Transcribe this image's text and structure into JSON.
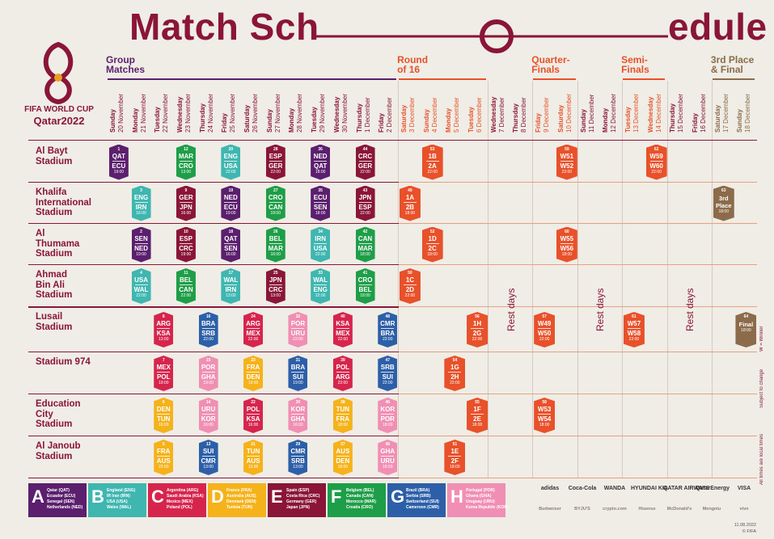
{
  "title": {
    "part1": "Match Sch",
    "part2": "edule"
  },
  "logo": {
    "line1": "FIFA WORLD CUP",
    "line2": "Qatar2022"
  },
  "stages": [
    {
      "lines": [
        "Group",
        "Matches"
      ],
      "color": "#5b1f6e"
    },
    {
      "lines": [
        "Round",
        "of 16"
      ],
      "color": "#e8512a"
    },
    {
      "lines": [
        "Quarter-",
        "Finals"
      ],
      "color": "#e8512a"
    },
    {
      "lines": [
        "Semi-",
        "Finals"
      ],
      "color": "#e8512a"
    },
    {
      "lines": [
        "3rd Place",
        "& Final"
      ],
      "color": "#8b6b4a"
    }
  ],
  "days": [
    {
      "day": "Sunday",
      "date": "20 November"
    },
    {
      "day": "Monday",
      "date": "21 November"
    },
    {
      "day": "Tuesday",
      "date": "22 November"
    },
    {
      "day": "Wednesday",
      "date": "23 November"
    },
    {
      "day": "Thursday",
      "date": "24 November"
    },
    {
      "day": "Friday",
      "date": "25 November"
    },
    {
      "day": "Saturday",
      "date": "26 November"
    },
    {
      "day": "Sunday",
      "date": "27 November"
    },
    {
      "day": "Monday",
      "date": "28 November"
    },
    {
      "day": "Tuesday",
      "date": "29 November"
    },
    {
      "day": "Wednesday",
      "date": "30 November"
    },
    {
      "day": "Thursday",
      "date": "1 December"
    },
    {
      "day": "Friday",
      "date": "2 December"
    },
    {
      "day": "Saturday",
      "date": "3 December"
    },
    {
      "day": "Sunday",
      "date": "4 December"
    },
    {
      "day": "Monday",
      "date": "5 December"
    },
    {
      "day": "Tuesday",
      "date": "6 December"
    },
    {
      "day": "Wednesday",
      "date": "7 December"
    },
    {
      "day": "Thursday",
      "date": "8 December"
    },
    {
      "day": "Friday",
      "date": "9 December"
    },
    {
      "day": "Saturday",
      "date": "10 December"
    },
    {
      "day": "Sunday",
      "date": "11 December"
    },
    {
      "day": "Monday",
      "date": "12 December"
    },
    {
      "day": "Tuesday",
      "date": "13 December"
    },
    {
      "day": "Wednesday",
      "date": "14 December"
    },
    {
      "day": "Thursday",
      "date": "15 December"
    },
    {
      "day": "Friday",
      "date": "16 December"
    },
    {
      "day": "Saturday",
      "date": "17 December"
    },
    {
      "day": "Sunday",
      "date": "18 December"
    }
  ],
  "stadiums": [
    {
      "lines": [
        "Al Bayt",
        "Stadium"
      ]
    },
    {
      "lines": [
        "Khalifa",
        "International",
        "Stadium"
      ]
    },
    {
      "lines": [
        "Al",
        "Thumama",
        "Stadium"
      ]
    },
    {
      "lines": [
        "Ahmad",
        "Bin Ali",
        "Stadium"
      ]
    },
    {
      "lines": [
        "Lusail",
        "Stadium"
      ]
    },
    {
      "lines": [
        "Stadium 974"
      ]
    },
    {
      "lines": [
        "Education",
        "City",
        "Stadium"
      ]
    },
    {
      "lines": [
        "Al Janoub",
        "Stadium"
      ]
    }
  ],
  "groups": [
    {
      "letter": "A",
      "color": "#5b1f6e",
      "teams": [
        "Qatar (QAT)",
        "Ecuador (ECU)",
        "Senegal (SEN)",
        "Netherlands (NED)"
      ]
    },
    {
      "letter": "B",
      "color": "#3fb6b0",
      "teams": [
        "England (ENG)",
        "IR Iran (IRN)",
        "USA (USA)",
        "Wales (WAL)"
      ]
    },
    {
      "letter": "C",
      "color": "#d6254d",
      "teams": [
        "Argentina (ARG)",
        "Saudi Arabia (KSA)",
        "Mexico (MEX)",
        "Poland (POL)"
      ]
    },
    {
      "letter": "D",
      "color": "#f5b21a",
      "teams": [
        "France (FRA)",
        "Australia (AUS)",
        "Denmark (DEN)",
        "Tunisia (TUN)"
      ]
    },
    {
      "letter": "E",
      "color": "#8a1538",
      "teams": [
        "Spain (ESP)",
        "Costa Rica (CRC)",
        "Germany (GER)",
        "Japan (JPN)"
      ]
    },
    {
      "letter": "F",
      "color": "#1e9e48",
      "teams": [
        "Belgium (BEL)",
        "Canada (CAN)",
        "Morocco (MAR)",
        "Croatia (CRO)"
      ]
    },
    {
      "letter": "G",
      "color": "#2d5fa8",
      "teams": [
        "Brazil (BRA)",
        "Serbia (SRB)",
        "Switzerland (SUI)",
        "Cameroon (CMR)"
      ]
    },
    {
      "letter": "H",
      "color": "#f08fb3",
      "teams": [
        "Portugal (POR)",
        "Ghana (GHA)",
        "Uruguay (URU)",
        "Korea Republic (KOR)"
      ]
    }
  ],
  "matches": [
    {
      "no": 1,
      "stadium": 0,
      "day": 0,
      "home": "QAT",
      "away": "ECU",
      "time": "19:00",
      "group": "A"
    },
    {
      "no": 2,
      "stadium": 2,
      "day": 1,
      "home": "SEN",
      "away": "NED",
      "time": "19:00",
      "group": "A"
    },
    {
      "no": 3,
      "stadium": 1,
      "day": 1,
      "home": "ENG",
      "away": "IRN",
      "time": "16:00",
      "group": "B"
    },
    {
      "no": 4,
      "stadium": 3,
      "day": 1,
      "home": "USA",
      "away": "WAL",
      "time": "22:00",
      "group": "B"
    },
    {
      "no": 5,
      "stadium": 7,
      "day": 2,
      "home": "FRA",
      "away": "AUS",
      "time": "22:00",
      "group": "D"
    },
    {
      "no": 6,
      "stadium": 6,
      "day": 2,
      "home": "DEN",
      "away": "TUN",
      "time": "16:00",
      "group": "D"
    },
    {
      "no": 7,
      "stadium": 5,
      "day": 2,
      "home": "MEX",
      "away": "POL",
      "time": "19:00",
      "group": "C"
    },
    {
      "no": 8,
      "stadium": 4,
      "day": 2,
      "home": "ARG",
      "away": "KSA",
      "time": "13:00",
      "group": "C"
    },
    {
      "no": 9,
      "stadium": 1,
      "day": 3,
      "home": "GER",
      "away": "JPN",
      "time": "16:00",
      "group": "E"
    },
    {
      "no": 10,
      "stadium": 2,
      "day": 3,
      "home": "ESP",
      "away": "CRC",
      "time": "19:00",
      "group": "E"
    },
    {
      "no": 11,
      "stadium": 3,
      "day": 3,
      "home": "BEL",
      "away": "CAN",
      "time": "22:00",
      "group": "F"
    },
    {
      "no": 12,
      "stadium": 0,
      "day": 3,
      "home": "MAR",
      "away": "CRO",
      "time": "13:00",
      "group": "F"
    },
    {
      "no": 13,
      "stadium": 7,
      "day": 4,
      "home": "SUI",
      "away": "CMR",
      "time": "13:00",
      "group": "G"
    },
    {
      "no": 14,
      "stadium": 6,
      "day": 4,
      "home": "URU",
      "away": "KOR",
      "time": "16:00",
      "group": "H"
    },
    {
      "no": 15,
      "stadium": 5,
      "day": 4,
      "home": "POR",
      "away": "GHA",
      "time": "19:00",
      "group": "H"
    },
    {
      "no": 16,
      "stadium": 4,
      "day": 4,
      "home": "BRA",
      "away": "SRB",
      "time": "22:00",
      "group": "G"
    },
    {
      "no": 17,
      "stadium": 3,
      "day": 5,
      "home": "WAL",
      "away": "IRN",
      "time": "13:00",
      "group": "B"
    },
    {
      "no": 18,
      "stadium": 2,
      "day": 5,
      "home": "QAT",
      "away": "SEN",
      "time": "16:00",
      "group": "A"
    },
    {
      "no": 19,
      "stadium": 1,
      "day": 5,
      "home": "NED",
      "away": "ECU",
      "time": "19:00",
      "group": "A"
    },
    {
      "no": 20,
      "stadium": 0,
      "day": 5,
      "home": "ENG",
      "away": "USA",
      "time": "22:00",
      "group": "B"
    },
    {
      "no": 21,
      "stadium": 7,
      "day": 6,
      "home": "TUN",
      "away": "AUS",
      "time": "13:00",
      "group": "D"
    },
    {
      "no": 22,
      "stadium": 6,
      "day": 6,
      "home": "POL",
      "away": "KSA",
      "time": "16:00",
      "group": "C"
    },
    {
      "no": 23,
      "stadium": 5,
      "day": 6,
      "home": "FRA",
      "away": "DEN",
      "time": "19:00",
      "group": "D"
    },
    {
      "no": 24,
      "stadium": 4,
      "day": 6,
      "home": "ARG",
      "away": "MEX",
      "time": "22:00",
      "group": "C"
    },
    {
      "no": 25,
      "stadium": 3,
      "day": 7,
      "home": "JPN",
      "away": "CRC",
      "time": "13:00",
      "group": "E"
    },
    {
      "no": 26,
      "stadium": 2,
      "day": 7,
      "home": "BEL",
      "away": "MAR",
      "time": "16:00",
      "group": "F"
    },
    {
      "no": 27,
      "stadium": 1,
      "day": 7,
      "home": "CRO",
      "away": "CAN",
      "time": "19:00",
      "group": "F"
    },
    {
      "no": 28,
      "stadium": 0,
      "day": 7,
      "home": "ESP",
      "away": "GER",
      "time": "22:00",
      "group": "E"
    },
    {
      "no": 29,
      "stadium": 7,
      "day": 8,
      "home": "CMR",
      "away": "SRB",
      "time": "13:00",
      "group": "G"
    },
    {
      "no": 30,
      "stadium": 6,
      "day": 8,
      "home": "KOR",
      "away": "GHA",
      "time": "16:00",
      "group": "H"
    },
    {
      "no": 31,
      "stadium": 5,
      "day": 8,
      "home": "BRA",
      "away": "SUI",
      "time": "19:00",
      "group": "G"
    },
    {
      "no": 32,
      "stadium": 4,
      "day": 8,
      "home": "POR",
      "away": "URU",
      "time": "22:00",
      "group": "H"
    },
    {
      "no": 33,
      "stadium": 3,
      "day": 9,
      "home": "WAL",
      "away": "ENG",
      "time": "22:00",
      "group": "B"
    },
    {
      "no": 34,
      "stadium": 2,
      "day": 9,
      "home": "IRN",
      "away": "USA",
      "time": "22:00",
      "group": "B"
    },
    {
      "no": 35,
      "stadium": 1,
      "day": 9,
      "home": "ECU",
      "away": "SEN",
      "time": "18:00",
      "group": "A"
    },
    {
      "no": 36,
      "stadium": 0,
      "day": 9,
      "home": "NED",
      "away": "QAT",
      "time": "18:00",
      "group": "A"
    },
    {
      "no": 37,
      "stadium": 7,
      "day": 10,
      "home": "AUS",
      "away": "DEN",
      "time": "18:00",
      "group": "D"
    },
    {
      "no": 38,
      "stadium": 6,
      "day": 10,
      "home": "TUN",
      "away": "FRA",
      "time": "18:00",
      "group": "D"
    },
    {
      "no": 39,
      "stadium": 5,
      "day": 10,
      "home": "POL",
      "away": "ARG",
      "time": "22:00",
      "group": "C"
    },
    {
      "no": 40,
      "stadium": 4,
      "day": 10,
      "home": "KSA",
      "away": "MEX",
      "time": "22:00",
      "group": "C"
    },
    {
      "no": 41,
      "stadium": 3,
      "day": 11,
      "home": "CRO",
      "away": "BEL",
      "time": "18:00",
      "group": "F"
    },
    {
      "no": 42,
      "stadium": 2,
      "day": 11,
      "home": "CAN",
      "away": "MAR",
      "time": "18:00",
      "group": "F"
    },
    {
      "no": 43,
      "stadium": 1,
      "day": 11,
      "home": "JPN",
      "away": "ESP",
      "time": "22:00",
      "group": "E"
    },
    {
      "no": 44,
      "stadium": 0,
      "day": 11,
      "home": "CRC",
      "away": "GER",
      "time": "22:00",
      "group": "E"
    },
    {
      "no": 45,
      "stadium": 7,
      "day": 12,
      "home": "GHA",
      "away": "URU",
      "time": "18:00",
      "group": "H"
    },
    {
      "no": 46,
      "stadium": 6,
      "day": 12,
      "home": "KOR",
      "away": "POR",
      "time": "18:00",
      "group": "H"
    },
    {
      "no": 47,
      "stadium": 5,
      "day": 12,
      "home": "SRB",
      "away": "SUI",
      "time": "22:00",
      "group": "G"
    },
    {
      "no": 48,
      "stadium": 4,
      "day": 12,
      "home": "CMR",
      "away": "BRA",
      "time": "22:00",
      "group": "G"
    },
    {
      "no": 49,
      "stadium": 1,
      "day": 13,
      "home": "1A",
      "away": "2B",
      "time": "18:00",
      "color": "#e8512a"
    },
    {
      "no": 50,
      "stadium": 3,
      "day": 13,
      "home": "1C",
      "away": "2D",
      "time": "22:00",
      "color": "#e8512a"
    },
    {
      "no": 51,
      "stadium": 7,
      "day": 15,
      "home": "1E",
      "away": "2F",
      "time": "18:00",
      "color": "#e8512a"
    },
    {
      "no": 52,
      "stadium": 2,
      "day": 14,
      "home": "1D",
      "away": "2C",
      "time": "18:00",
      "color": "#e8512a"
    },
    {
      "no": 53,
      "stadium": 0,
      "day": 14,
      "home": "1B",
      "away": "2A",
      "time": "22:00",
      "color": "#e8512a"
    },
    {
      "no": 54,
      "stadium": 5,
      "day": 15,
      "home": "1G",
      "away": "2H",
      "time": "22:00",
      "color": "#e8512a"
    },
    {
      "no": 55,
      "stadium": 6,
      "day": 16,
      "home": "1F",
      "away": "2E",
      "time": "18:00",
      "color": "#e8512a"
    },
    {
      "no": 56,
      "stadium": 4,
      "day": 16,
      "home": "1H",
      "away": "2G",
      "time": "22:00",
      "color": "#e8512a"
    },
    {
      "no": 57,
      "stadium": 4,
      "day": 19,
      "home": "W49",
      "away": "W50",
      "time": "22:00",
      "color": "#e8512a"
    },
    {
      "no": 58,
      "stadium": 6,
      "day": 19,
      "home": "W53",
      "away": "W54",
      "time": "18:00",
      "color": "#e8512a"
    },
    {
      "no": 59,
      "stadium": 0,
      "day": 20,
      "home": "W51",
      "away": "W52",
      "time": "22:00",
      "color": "#e8512a"
    },
    {
      "no": 60,
      "stadium": 2,
      "day": 20,
      "home": "W55",
      "away": "W56",
      "time": "18:00",
      "color": "#e8512a"
    },
    {
      "no": 61,
      "stadium": 4,
      "day": 23,
      "home": "W57",
      "away": "W58",
      "time": "22:00",
      "color": "#e8512a"
    },
    {
      "no": 62,
      "stadium": 0,
      "day": 24,
      "home": "W59",
      "away": "W60",
      "time": "22:00",
      "color": "#e8512a"
    },
    {
      "no": 63,
      "stadium": 1,
      "day": 27,
      "label": "3rd Place",
      "time": "18:00",
      "color": "#8b6b4a"
    },
    {
      "no": 64,
      "stadium": 4,
      "day": 28,
      "label": "Final",
      "time": "18:00",
      "color": "#8b6b4a"
    }
  ],
  "rest_days": {
    "label": "Rest days",
    "days": [
      17,
      21,
      25
    ]
  },
  "notes": [
    "W = Winner",
    "Subject to change",
    "All times are local times"
  ],
  "sponsors": [
    [
      "adidas",
      "Coca-Cola",
      "WANDA",
      "HYUNDAI KIA",
      "QATAR AIRWAYS",
      "QatarEnergy",
      "VISA"
    ],
    [
      "Budweiser",
      "BYJU'S",
      "crypto.com",
      "Hisense",
      "McDonald's",
      "Mengniu",
      "vivo"
    ]
  ],
  "footer": {
    "date": "11.08.2022",
    "copyright": "© FIFA"
  }
}
